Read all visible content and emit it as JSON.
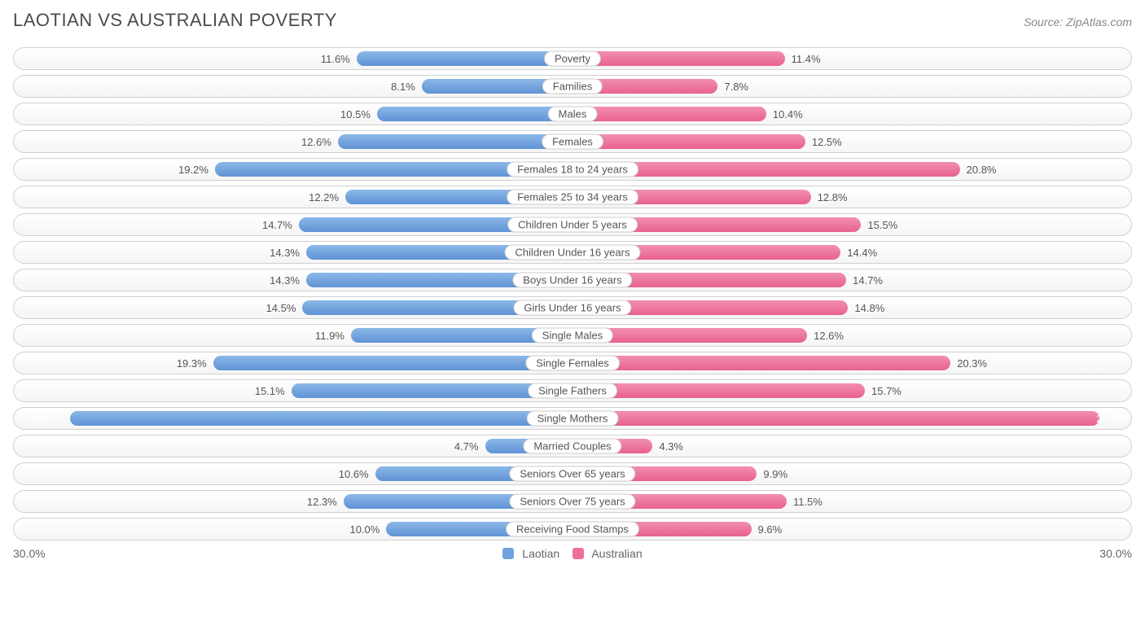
{
  "title": "LAOTIAN VS AUSTRALIAN POVERTY",
  "source": "Source: ZipAtlas.com",
  "axis_max": 30.0,
  "axis_label_left": "30.0%",
  "axis_label_right": "30.0%",
  "legend": {
    "left": {
      "label": "Laotian",
      "color": "#6fa3e0"
    },
    "right": {
      "label": "Australian",
      "color": "#ee6f9a"
    }
  },
  "colors": {
    "left_bar_base": "#8cb8e8",
    "left_bar_dark": "#5f93d6",
    "right_bar_base": "#f28fb1",
    "right_bar_dark": "#e8618f",
    "pill_border": "#d0d0d0",
    "text": "#555555"
  },
  "rows": [
    {
      "category": "Poverty",
      "left_val": 11.6,
      "right_val": 11.4,
      "left_label": "11.6%",
      "right_label": "11.4%"
    },
    {
      "category": "Families",
      "left_val": 8.1,
      "right_val": 7.8,
      "left_label": "8.1%",
      "right_label": "7.8%"
    },
    {
      "category": "Males",
      "left_val": 10.5,
      "right_val": 10.4,
      "left_label": "10.5%",
      "right_label": "10.4%"
    },
    {
      "category": "Females",
      "left_val": 12.6,
      "right_val": 12.5,
      "left_label": "12.6%",
      "right_label": "12.5%"
    },
    {
      "category": "Females 18 to 24 years",
      "left_val": 19.2,
      "right_val": 20.8,
      "left_label": "19.2%",
      "right_label": "20.8%"
    },
    {
      "category": "Females 25 to 34 years",
      "left_val": 12.2,
      "right_val": 12.8,
      "left_label": "12.2%",
      "right_label": "12.8%"
    },
    {
      "category": "Children Under 5 years",
      "left_val": 14.7,
      "right_val": 15.5,
      "left_label": "14.7%",
      "right_label": "15.5%"
    },
    {
      "category": "Children Under 16 years",
      "left_val": 14.3,
      "right_val": 14.4,
      "left_label": "14.3%",
      "right_label": "14.4%"
    },
    {
      "category": "Boys Under 16 years",
      "left_val": 14.3,
      "right_val": 14.7,
      "left_label": "14.3%",
      "right_label": "14.7%"
    },
    {
      "category": "Girls Under 16 years",
      "left_val": 14.5,
      "right_val": 14.8,
      "left_label": "14.5%",
      "right_label": "14.8%"
    },
    {
      "category": "Single Males",
      "left_val": 11.9,
      "right_val": 12.6,
      "left_label": "11.9%",
      "right_label": "12.6%"
    },
    {
      "category": "Single Females",
      "left_val": 19.3,
      "right_val": 20.3,
      "left_label": "19.3%",
      "right_label": "20.3%"
    },
    {
      "category": "Single Fathers",
      "left_val": 15.1,
      "right_val": 15.7,
      "left_label": "15.1%",
      "right_label": "15.7%"
    },
    {
      "category": "Single Mothers",
      "left_val": 27.0,
      "right_val": 28.3,
      "left_label": "27.0%",
      "right_label": "28.3%"
    },
    {
      "category": "Married Couples",
      "left_val": 4.7,
      "right_val": 4.3,
      "left_label": "4.7%",
      "right_label": "4.3%"
    },
    {
      "category": "Seniors Over 65 years",
      "left_val": 10.6,
      "right_val": 9.9,
      "left_label": "10.6%",
      "right_label": "9.9%"
    },
    {
      "category": "Seniors Over 75 years",
      "left_val": 12.3,
      "right_val": 11.5,
      "left_label": "12.3%",
      "right_label": "11.5%"
    },
    {
      "category": "Receiving Food Stamps",
      "left_val": 10.0,
      "right_val": 9.6,
      "left_label": "10.0%",
      "right_label": "9.6%"
    }
  ]
}
